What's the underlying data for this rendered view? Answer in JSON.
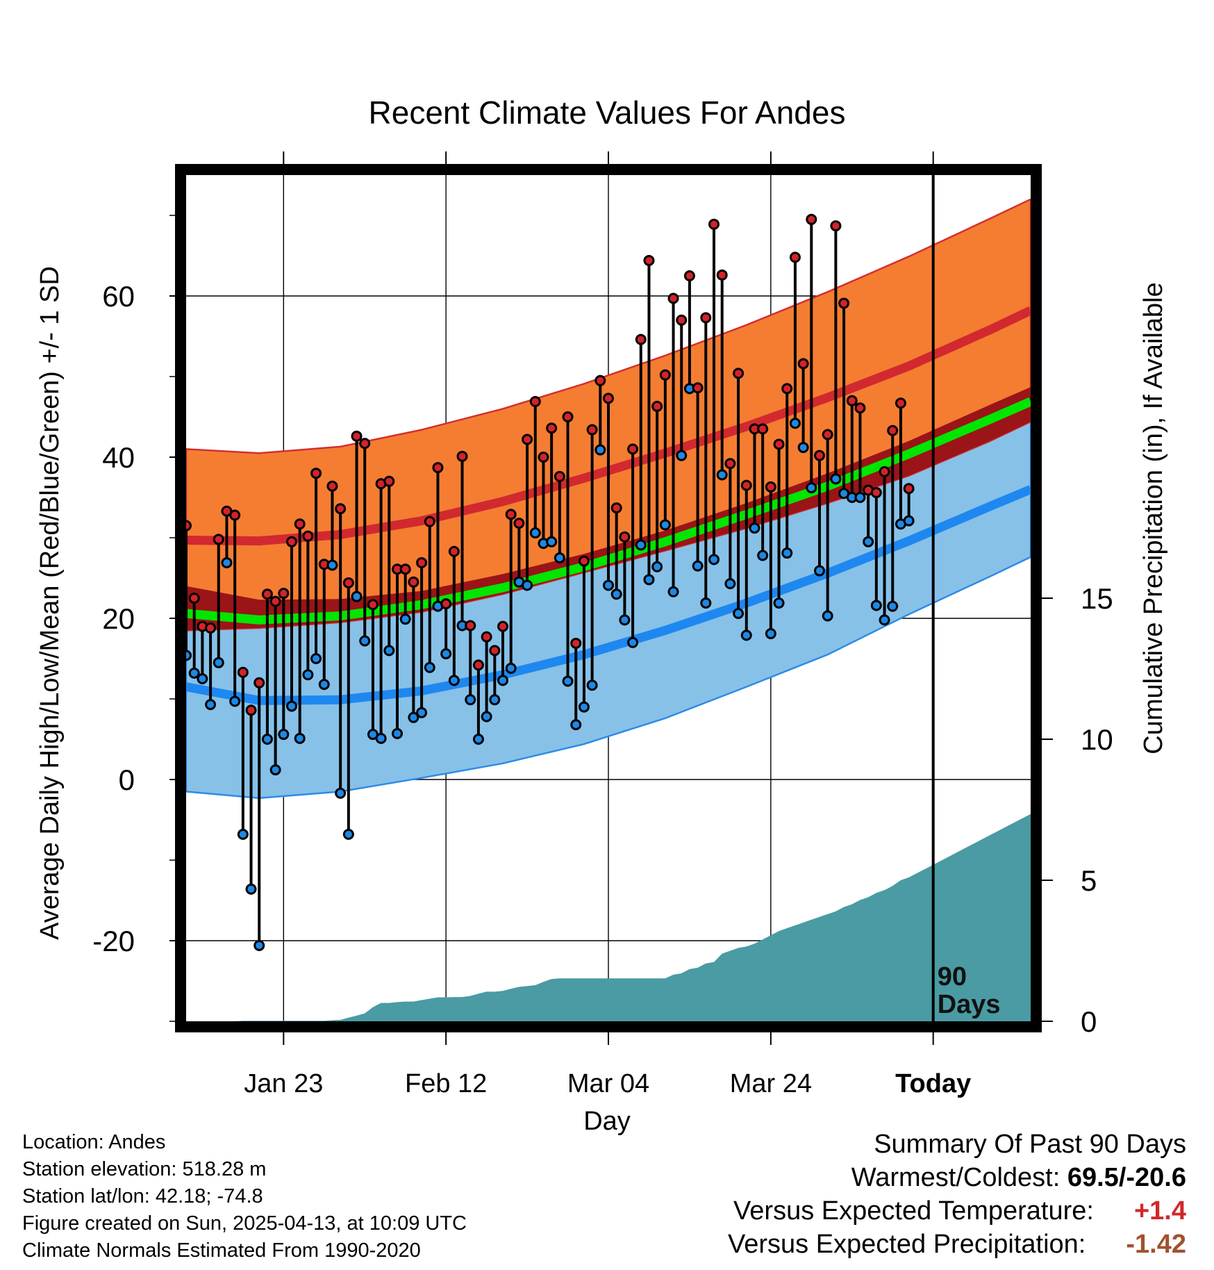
{
  "chart_data": {
    "type": "line",
    "title": "Recent Climate Values For Andes",
    "xlabel": "Day",
    "ylabel": "Average Daily High/Low/Mean (Red/Blue/Green) +/- 1 SD",
    "ylabel_right": "Cumulative Precipitation (in), If Available",
    "ylim": [
      -30,
      75
    ],
    "y_ticks": [
      -20,
      0,
      20,
      40,
      60
    ],
    "y2lim": [
      0,
      30
    ],
    "y2_ticks": [
      0,
      5,
      10,
      15
    ],
    "xlim": [
      1,
      105
    ],
    "x_ticks": [
      {
        "day": 13,
        "label": "Jan 23"
      },
      {
        "day": 33,
        "label": "Feb 12"
      },
      {
        "day": 53,
        "label": "Mar 04"
      },
      {
        "day": 73,
        "label": "Mar 24"
      },
      {
        "day": 93,
        "label": "Today"
      }
    ],
    "today_day": 93,
    "window_label": [
      "90",
      "Days"
    ],
    "normals": {
      "x": [
        1,
        10,
        20,
        30,
        40,
        50,
        60,
        70,
        80,
        90,
        100,
        105
      ],
      "high_mean": [
        29.7,
        29.6,
        30.4,
        32.1,
        34.5,
        37.4,
        40.5,
        43.8,
        47.4,
        51.3,
        55.8,
        58.2
      ],
      "high_upper": [
        41.0,
        40.5,
        41.3,
        43.4,
        46.0,
        49.1,
        52.6,
        56.4,
        60.5,
        64.9,
        69.6,
        72.0
      ],
      "high_lower": [
        18.5,
        18.8,
        19.5,
        20.8,
        23.0,
        25.7,
        28.4,
        31.2,
        34.3,
        37.7,
        42.0,
        44.4
      ],
      "low_mean": [
        11.5,
        9.8,
        9.9,
        11.0,
        13.0,
        15.5,
        18.5,
        21.9,
        25.6,
        29.6,
        33.9,
        36.0
      ],
      "low_upper": [
        24.0,
        22.3,
        22.4,
        23.4,
        25.5,
        28.0,
        30.9,
        34.3,
        38.0,
        42.0,
        46.5,
        48.7
      ],
      "low_lower": [
        -1.5,
        -2.3,
        -1.5,
        0.2,
        2.0,
        4.4,
        7.6,
        11.5,
        15.5,
        20.5,
        25.2,
        27.6
      ],
      "mean": [
        20.6,
        19.8,
        20.3,
        21.7,
        23.8,
        26.4,
        29.5,
        32.9,
        36.4,
        40.4,
        44.7,
        46.9
      ]
    },
    "series": [
      {
        "name": "Daily High",
        "color": "#d4232a",
        "values": [
          31.5,
          22.5,
          19.0,
          18.8,
          29.8,
          33.3,
          32.8,
          13.3,
          8.6,
          12.0,
          23.0,
          22.1,
          23.1,
          29.5,
          31.7,
          30.2,
          38.0,
          26.7,
          36.4,
          33.6,
          24.4,
          42.6,
          41.7,
          21.7,
          36.7,
          37.0,
          26.1,
          26.1,
          24.5,
          26.9,
          32.0,
          38.7,
          21.8,
          28.3,
          40.1,
          19.1,
          14.2,
          17.7,
          16.0,
          19.0,
          32.9,
          31.8,
          42.2,
          46.9,
          40.0,
          43.6,
          37.6,
          45.0,
          16.9,
          27.1,
          43.4,
          49.5,
          47.3,
          33.7,
          30.1,
          41.0,
          54.6,
          64.4,
          46.3,
          50.2,
          59.7,
          57.0,
          62.5,
          48.6,
          57.3,
          68.9,
          62.6,
          39.2,
          50.4,
          36.5,
          43.5,
          43.5,
          36.3,
          41.6,
          48.5,
          64.8,
          51.6,
          69.5,
          40.2,
          42.8,
          68.7,
          59.1,
          47.0,
          46.1,
          35.9,
          35.6,
          38.2,
          43.3,
          46.7,
          36.1
        ]
      },
      {
        "name": "Daily Low",
        "color": "#1e88e5",
        "values": [
          15.4,
          13.2,
          12.5,
          9.3,
          14.5,
          26.9,
          9.7,
          -6.8,
          -13.6,
          -20.6,
          5.0,
          1.2,
          5.6,
          9.1,
          5.1,
          13.0,
          15.0,
          11.8,
          26.6,
          -1.7,
          -6.8,
          22.7,
          17.2,
          5.6,
          5.1,
          16.0,
          5.7,
          19.9,
          7.7,
          8.3,
          13.9,
          21.5,
          15.6,
          12.3,
          19.1,
          9.9,
          5.0,
          7.8,
          9.9,
          12.3,
          13.8,
          24.5,
          24.1,
          30.6,
          29.3,
          29.5,
          27.5,
          12.2,
          6.8,
          9.0,
          11.7,
          40.9,
          24.1,
          23.0,
          19.8,
          17.0,
          29.1,
          24.8,
          26.4,
          31.6,
          23.3,
          40.2,
          48.5,
          26.5,
          21.9,
          27.3,
          37.8,
          24.3,
          20.6,
          17.9,
          31.2,
          27.8,
          18.1,
          21.9,
          28.1,
          44.2,
          41.2,
          36.2,
          25.9,
          20.3,
          37.3,
          35.5,
          35.0,
          35.0,
          29.5,
          21.6,
          19.8,
          21.5,
          31.7,
          32.1
        ]
      },
      {
        "name": "Cumulative Precipitation (in)",
        "color": "#4a9ba3",
        "x": [
          1,
          7,
          8,
          18,
          19,
          20,
          21,
          22,
          23,
          24,
          25,
          26,
          27,
          28,
          29,
          30,
          31,
          32,
          33,
          34,
          35,
          36,
          37,
          38,
          39,
          40,
          41,
          42,
          43,
          44,
          45,
          46,
          47,
          48,
          49,
          50,
          51,
          52,
          53,
          54,
          55,
          56,
          57,
          58,
          59,
          60,
          61,
          62,
          63,
          64,
          65,
          66,
          67,
          68,
          69,
          70,
          71,
          72,
          73,
          74,
          75,
          76,
          77,
          78,
          79,
          80,
          81,
          82,
          83,
          84,
          85,
          86,
          87,
          88,
          89,
          90,
          91,
          92,
          93,
          94,
          95,
          96,
          97,
          98,
          99,
          100,
          101,
          102,
          103,
          104,
          105
        ],
        "values": [
          0.0,
          0.0,
          0.02,
          0.02,
          0.04,
          0.05,
          0.13,
          0.2,
          0.28,
          0.5,
          0.65,
          0.65,
          0.68,
          0.7,
          0.7,
          0.75,
          0.8,
          0.85,
          0.85,
          0.86,
          0.86,
          0.9,
          0.98,
          1.05,
          1.05,
          1.08,
          1.15,
          1.22,
          1.25,
          1.28,
          1.4,
          1.5,
          1.52,
          1.52,
          1.52,
          1.52,
          1.52,
          1.52,
          1.52,
          1.52,
          1.52,
          1.52,
          1.52,
          1.52,
          1.52,
          1.52,
          1.65,
          1.7,
          1.85,
          1.9,
          2.05,
          2.1,
          2.4,
          2.5,
          2.6,
          2.65,
          2.75,
          2.9,
          3.05,
          3.2,
          3.3,
          3.4,
          3.5,
          3.6,
          3.7,
          3.8,
          3.9,
          4.05,
          4.15,
          4.3,
          4.4,
          4.55,
          4.65,
          4.8,
          5.0,
          5.1,
          5.25,
          5.4,
          5.55,
          5.7,
          5.85,
          6.0,
          6.15,
          6.3,
          6.45,
          6.6,
          6.75,
          6.9,
          7.05,
          7.2,
          7.35
        ]
      }
    ]
  },
  "info": {
    "location": "Location: Andes",
    "elevation": "Station elevation: 518.28 m",
    "latlon": "Station lat/lon: 42.18; -74.8",
    "created": "Figure created on Sun, 2025-04-13, at 10:09 UTC",
    "normals": "Climate Normals Estimated From 1990-2020"
  },
  "summary": {
    "title": "Summary Of Past 90 Days",
    "warm_cold_label": "Warmest/Coldest:",
    "warm_cold_value": "69.5/-20.6",
    "temp_label": "Versus Expected Temperature:",
    "temp_value": "+1.4",
    "precip_label": "Versus Expected Precipitation:",
    "precip_value": "-1.42",
    "colors": {
      "temp": "#d0282a",
      "precip": "#a0522d"
    }
  }
}
